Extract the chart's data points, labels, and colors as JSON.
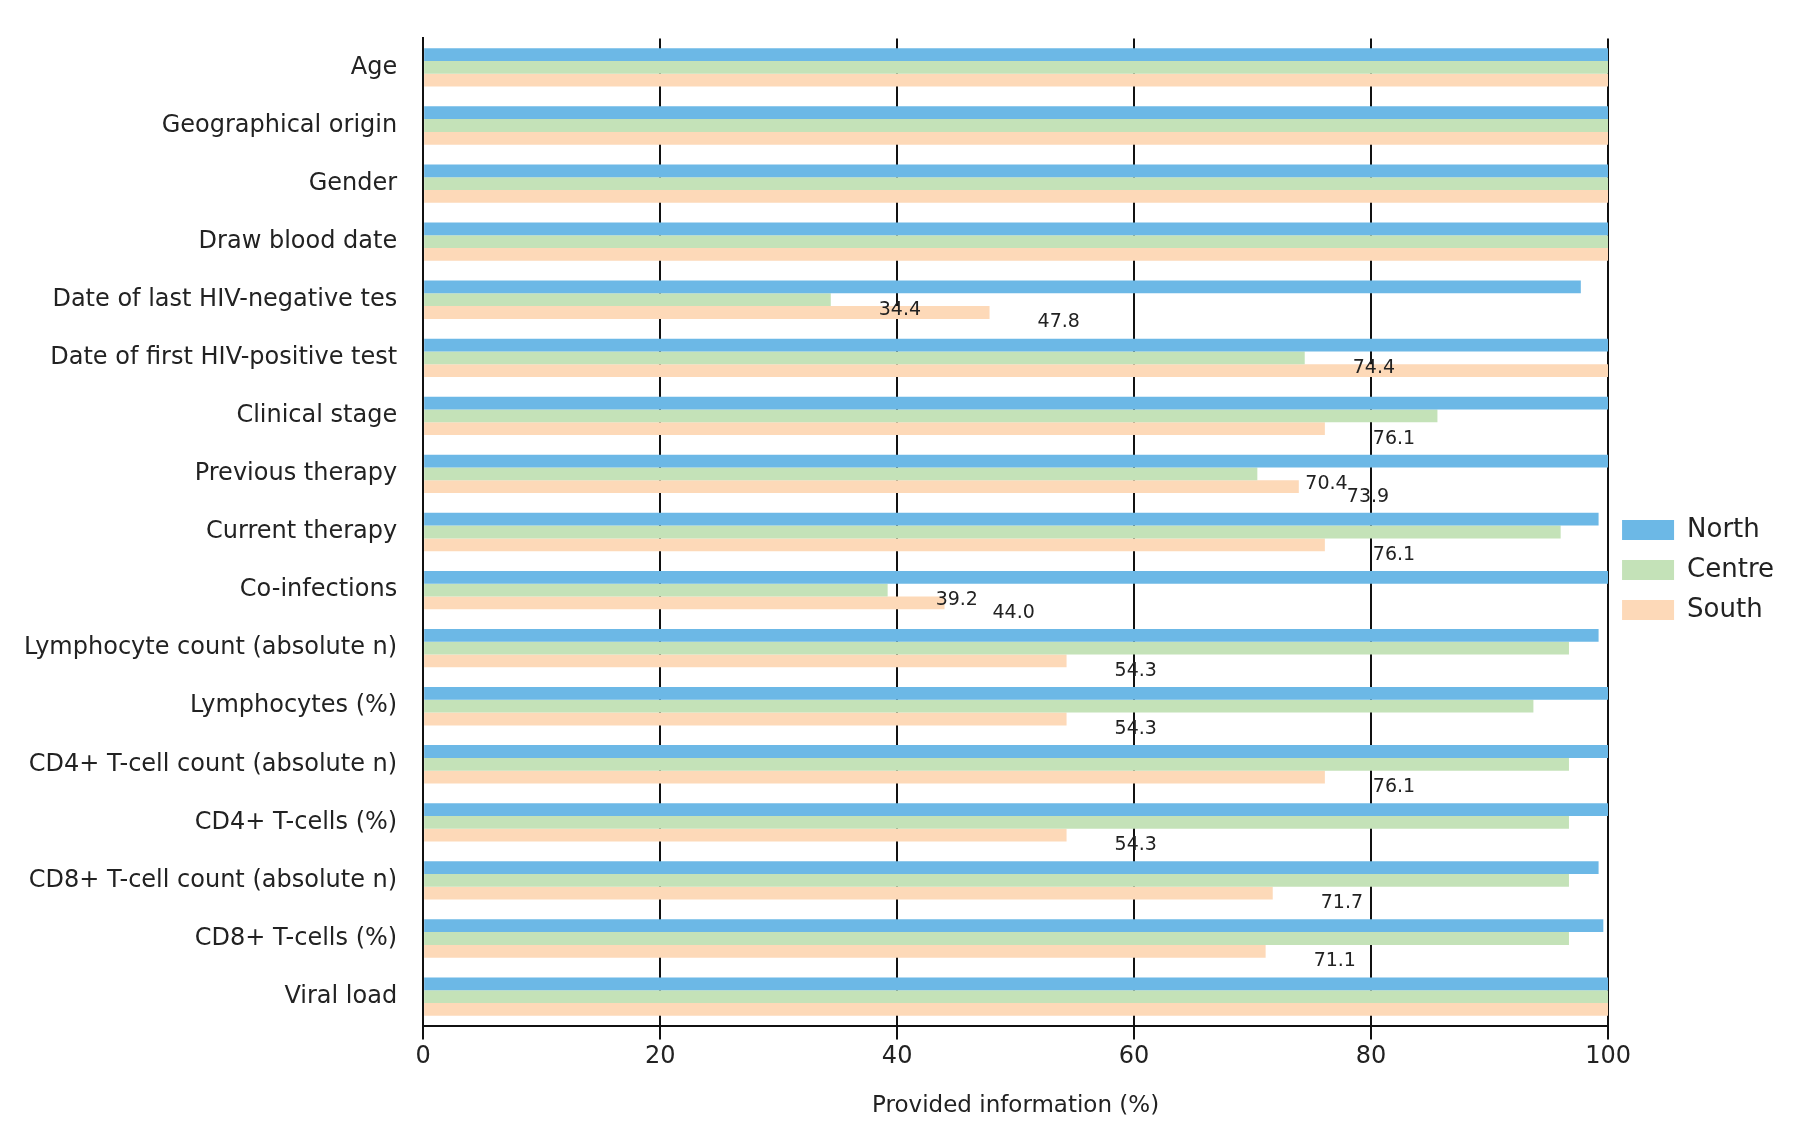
{
  "chart_data": {
    "type": "bar",
    "orientation": "horizontal",
    "xlabel": "Provided information (%)",
    "categories": [
      "Age",
      "Geographical origin",
      "Gender",
      "Draw blood date",
      "Date of last HIV-negative tes",
      "Date of first HIV-positive test",
      "Clinical stage",
      "Previous therapy",
      "Current therapy",
      "Co-infections",
      "Lymphocyte count (absolute n)",
      "Lymphocytes (%)",
      "CD4+ T-cell count (absolute n)",
      "CD4+ T-cells (%)",
      "CD8+ T-cell count (absolute n)",
      "CD8+ T-cells (%)",
      "Viral load"
    ],
    "series": [
      {
        "name": "North",
        "color": "#6cb8e6",
        "values": [
          100,
          100,
          100,
          100,
          97.7,
          100,
          100,
          100,
          99.2,
          100,
          99.2,
          100,
          100,
          100,
          99.2,
          99.6,
          100
        ]
      },
      {
        "name": "Centre",
        "color": "#c4e2b8",
        "values": [
          100,
          100,
          100,
          100,
          34.4,
          74.4,
          85.6,
          70.4,
          96.0,
          39.2,
          96.7,
          93.7,
          96.7,
          96.7,
          96.7,
          96.7,
          100
        ],
        "value_labels": [
          null,
          null,
          null,
          null,
          "34.4",
          "74.4",
          null,
          "70.4",
          null,
          "39.2",
          null,
          null,
          null,
          null,
          null,
          null,
          null
        ]
      },
      {
        "name": "South",
        "color": "#fdd9b8",
        "values": [
          100,
          100,
          100,
          100,
          47.8,
          100,
          76.1,
          73.9,
          76.1,
          44.0,
          54.3,
          54.3,
          76.1,
          54.3,
          71.7,
          71.1,
          100
        ],
        "value_labels": [
          null,
          null,
          null,
          null,
          "47.8",
          null,
          "76.1",
          "73.9",
          "76.1",
          "44.0",
          "54.3",
          "54.3",
          "76.1",
          "54.3",
          "71.7",
          "71.1",
          null
        ]
      }
    ],
    "xlim": [
      0,
      100
    ],
    "xticks": [
      0,
      20,
      40,
      60,
      80,
      100
    ],
    "grid": "x",
    "legend": "right"
  }
}
